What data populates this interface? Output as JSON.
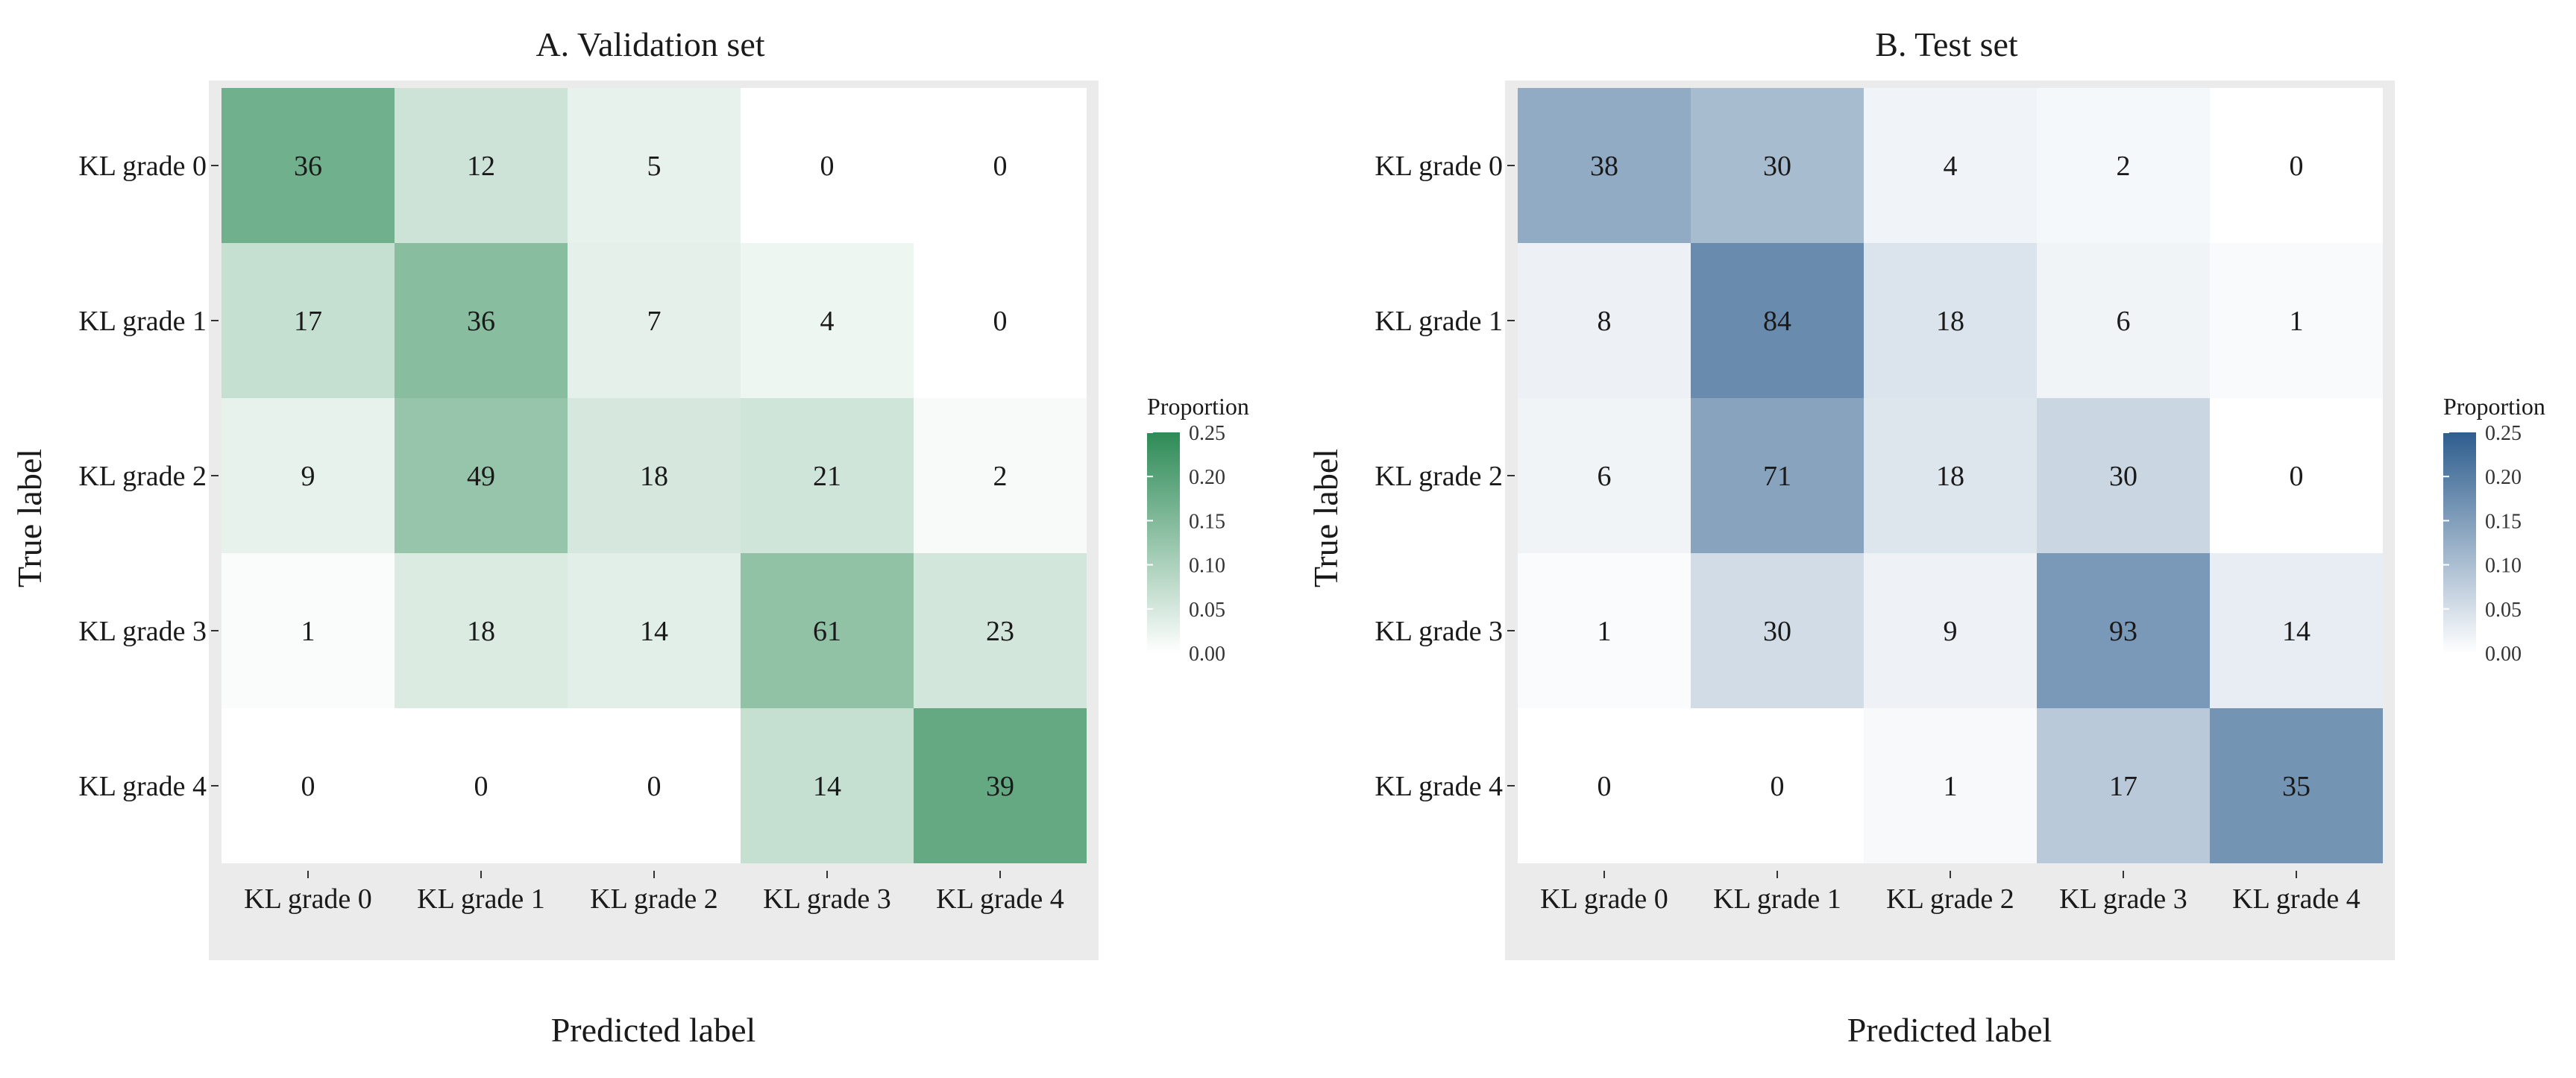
{
  "chart_data": [
    {
      "type": "heatmap",
      "title": "A. Validation set",
      "xlabel": "Predicted label",
      "ylabel": "True label",
      "x_categories": [
        "KL grade 0",
        "KL grade 1",
        "KL grade 2",
        "KL grade 3",
        "KL grade 4"
      ],
      "y_categories": [
        "KL grade 0",
        "KL grade 1",
        "KL grade 2",
        "KL grade 3",
        "KL grade 4"
      ],
      "values": [
        [
          36,
          12,
          5,
          0,
          0
        ],
        [
          17,
          36,
          7,
          4,
          0
        ],
        [
          9,
          49,
          18,
          21,
          2
        ],
        [
          1,
          18,
          14,
          61,
          23
        ],
        [
          0,
          0,
          0,
          14,
          39
        ]
      ],
      "legend": {
        "title": "Proportion",
        "ticks": [
          "0.25",
          "0.20",
          "0.15",
          "0.10",
          "0.05",
          "0.00"
        ],
        "tick_values": [
          0.25,
          0.2,
          0.15,
          0.1,
          0.05,
          0.0
        ],
        "range": [
          0,
          0.25
        ],
        "position": "right"
      },
      "color_high": "#2e8b57",
      "color_low": "#ffffff",
      "panel_background": "#ebebeb"
    },
    {
      "type": "heatmap",
      "title": "B. Test set",
      "xlabel": "Predicted label",
      "ylabel": "True label",
      "x_categories": [
        "KL grade 0",
        "KL grade 1",
        "KL grade 2",
        "KL grade 3",
        "KL grade 4"
      ],
      "y_categories": [
        "KL grade 0",
        "KL grade 1",
        "KL grade 2",
        "KL grade 3",
        "KL grade 4"
      ],
      "values": [
        [
          38,
          30,
          4,
          2,
          0
        ],
        [
          8,
          84,
          18,
          6,
          1
        ],
        [
          6,
          71,
          18,
          30,
          0
        ],
        [
          1,
          30,
          9,
          93,
          14
        ],
        [
          0,
          0,
          1,
          17,
          35
        ]
      ],
      "legend": {
        "title": "Proportion",
        "ticks": [
          "0.25",
          "0.20",
          "0.15",
          "0.10",
          "0.05",
          "0.00"
        ],
        "tick_values": [
          0.25,
          0.2,
          0.15,
          0.1,
          0.05,
          0.0
        ],
        "range": [
          0,
          0.25
        ],
        "position": "right"
      },
      "color_high": "#2e5e8e",
      "color_low": "#ffffff",
      "panel_background": "#ebebeb"
    }
  ]
}
